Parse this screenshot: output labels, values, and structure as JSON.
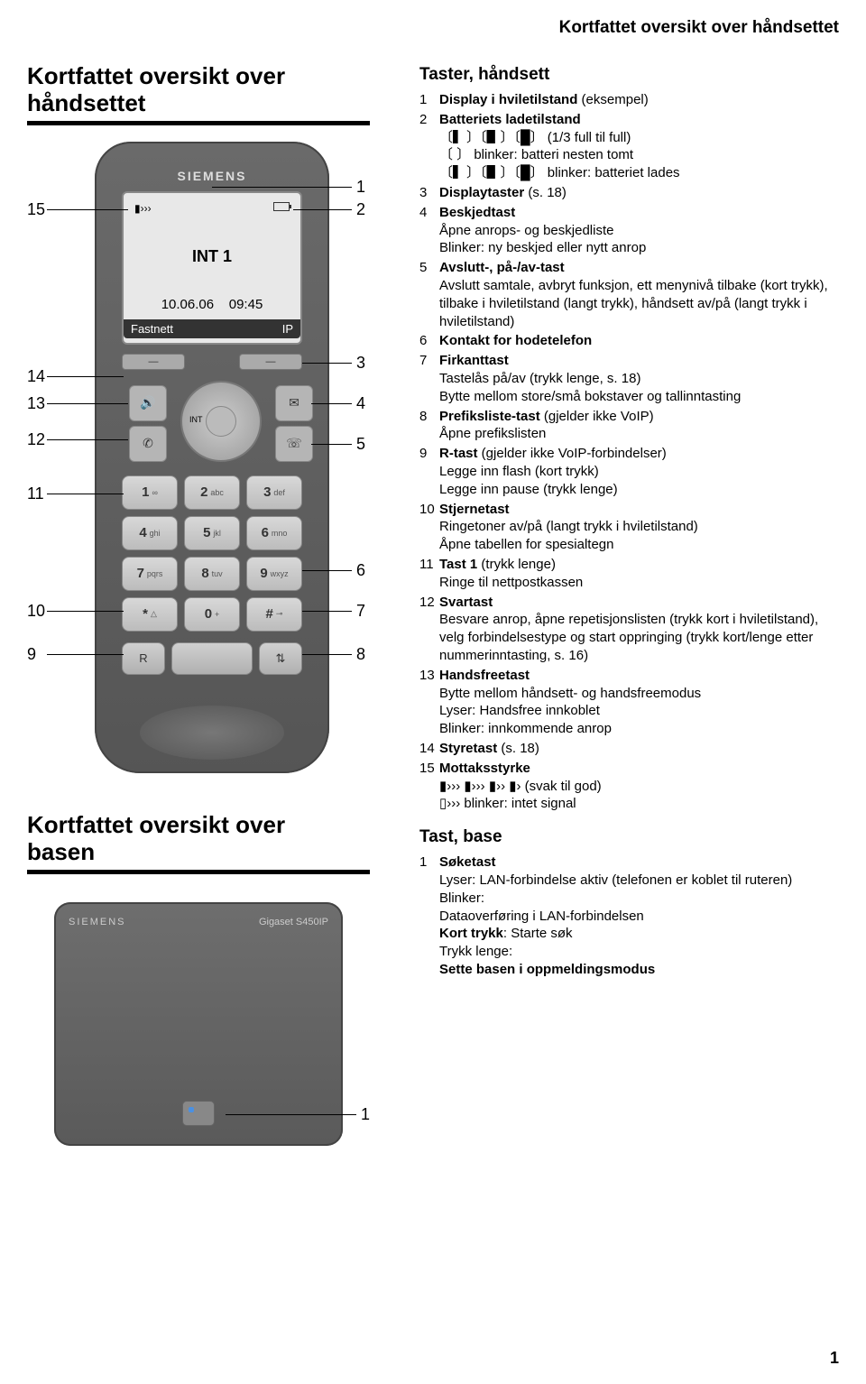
{
  "header_right": "Kortfattet oversikt over håndsettet",
  "title1_line1": "Kortfattet oversikt over",
  "title1_line2": "håndsettet",
  "title2_line1": "Kortfattet oversikt over",
  "title2_line2": "basen",
  "phone": {
    "brand": "SIEMENS",
    "signal": "▮›››",
    "int_label": "INT 1",
    "date": "10.06.06",
    "time": "09:45",
    "soft_left": "Fastnett",
    "soft_right": "IP",
    "softkey_left": "—",
    "softkey_right": "—",
    "nav_label": "INT",
    "keys": [
      {
        "n": "1",
        "l": "∞"
      },
      {
        "n": "2",
        "l": "abc"
      },
      {
        "n": "3",
        "l": "def"
      },
      {
        "n": "4",
        "l": "ghi"
      },
      {
        "n": "5",
        "l": "jkl"
      },
      {
        "n": "6",
        "l": "mno"
      },
      {
        "n": "7",
        "l": "pqrs"
      },
      {
        "n": "8",
        "l": "tuv"
      },
      {
        "n": "9",
        "l": "wxyz"
      },
      {
        "n": "*",
        "l": "△"
      },
      {
        "n": "0",
        "l": "+"
      },
      {
        "n": "#",
        "l": "⊸"
      }
    ],
    "bottom_left": "R",
    "bottom_right": "⇅"
  },
  "callouts_left": {
    "9": "9",
    "10": "10",
    "11": "11",
    "12": "12",
    "13": "13",
    "14": "14",
    "15": "15"
  },
  "callouts_right": {
    "1": "1",
    "2": "2",
    "3": "3",
    "4": "4",
    "5": "5",
    "6": "6",
    "7": "7",
    "8": "8"
  },
  "base": {
    "brand": "SIEMENS",
    "model": "Gigaset S450IP",
    "callout": "1"
  },
  "right": {
    "heading1": "Taster, håndsett",
    "items": [
      {
        "n": "1",
        "t": "Display i hviletilstand (eksempel)"
      },
      {
        "n": "2",
        "t": "Batteriets ladetilstand",
        "subs": [
          "〔▍〕〔▋〕〔█〕 (1/3 full til full)",
          "〔 〕 blinker: batteri nesten tomt",
          "〔▍〕〔▋〕〔█〕 blinker: batteriet lades"
        ]
      },
      {
        "n": "3",
        "t": "Displaytaster (s. 18)"
      },
      {
        "n": "4",
        "t": "Beskjedtast",
        "subs": [
          "Åpne anrops- og beskjedliste",
          "Blinker: ny beskjed eller nytt anrop"
        ]
      },
      {
        "n": "5",
        "t": "Avslutt-, på-/av-tast",
        "subs": [
          "Avslutt samtale, avbryt funksjon, ett menynivå tilbake (kort trykk), tilbake i hviletilstand (langt trykk), håndsett av/på (langt trykk i hviletilstand)"
        ]
      },
      {
        "n": "6",
        "t": "Kontakt for hodetelefon"
      },
      {
        "n": "7",
        "t": "Firkanttast",
        "subs": [
          "Tastelås på/av (trykk lenge, s. 18)",
          "Bytte mellom store/små bokstaver og tallinntasting"
        ]
      },
      {
        "n": "8",
        "t": "Prefiksliste-tast (gjelder ikke VoIP)",
        "subs": [
          "Åpne prefikslisten"
        ]
      },
      {
        "n": "9",
        "t": "R-tast (gjelder ikke VoIP-forbindelser)",
        "subs": [
          "Legge inn flash (kort trykk)",
          "Legge inn pause (trykk lenge)"
        ]
      },
      {
        "n": "10",
        "t": "Stjernetast",
        "subs": [
          "Ringetoner av/på (langt trykk i hviletilstand)",
          "Åpne tabellen for spesialtegn"
        ]
      },
      {
        "n": "11",
        "t": "Tast 1 (trykk lenge)",
        "subs": [
          "Ringe til nettpostkassen"
        ]
      },
      {
        "n": "12",
        "t": "Svartast",
        "subs": [
          "Besvare anrop, åpne repetisjonslisten (trykk kort i hviletilstand), velg forbindelsestype og start oppringing (trykk kort/lenge etter nummerinntasting, s. 16)"
        ]
      },
      {
        "n": "13",
        "t": "Handsfreetast",
        "subs": [
          "Bytte mellom håndsett- og handsfreemodus",
          "Lyser: Handsfree innkoblet",
          "Blinker: innkommende anrop"
        ]
      },
      {
        "n": "14",
        "t": "Styretast (s. 18)"
      },
      {
        "n": "15",
        "t": "Mottaksstyrke",
        "subs": [
          "▮››› ▮››› ▮›› ▮› (svak til god)",
          "▯››› blinker: intet signal"
        ]
      }
    ],
    "heading2": "Tast, base",
    "base_items": [
      {
        "n": "1",
        "t": "Søketast",
        "subs": [
          "Lyser: LAN-forbindelse aktiv (telefonen er koblet til ruteren)",
          "Blinker:",
          "Dataoverføring i LAN-forbindelsen",
          "Kort trykk: Starte søk",
          "Trykk lenge:",
          "Sette basen i oppmeldingsmodus"
        ],
        "boldsubs": [
          3,
          5
        ]
      }
    ]
  },
  "page_number": "1"
}
